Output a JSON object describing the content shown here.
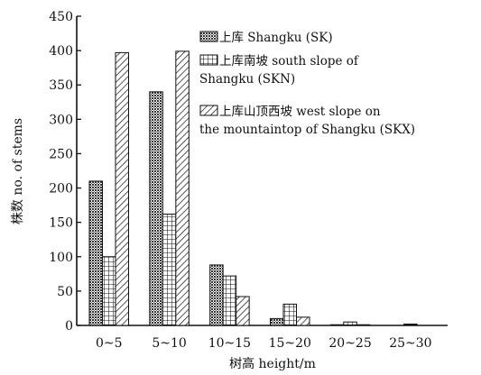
{
  "chart_data": {
    "type": "bar",
    "categories": [
      "0~5",
      "5~10",
      "10~15",
      "15~20",
      "20~25",
      "25~30"
    ],
    "series": [
      {
        "name": "上库 Shangku (SK)",
        "values": [
          210,
          340,
          88,
          10,
          1,
          0
        ]
      },
      {
        "name": "上库南坡 south slope of Shangku (SKN)",
        "values": [
          100,
          162,
          72,
          31,
          5,
          2
        ]
      },
      {
        "name": "上库山顶西坡 west slope on the mountaintop of Shangku (SKX)",
        "values": [
          397,
          399,
          42,
          12,
          1,
          0
        ]
      }
    ],
    "legend_lines": [
      [
        "上库  Shangku (SK)"
      ],
      [
        "上库南坡  south slope of",
        "Shangku (SKN)"
      ],
      [
        "上库山顶西坡 west slope on",
        "the mountaintop of Shangku (SKX)"
      ]
    ],
    "y_ticks": [
      "0",
      "50",
      "100",
      "150",
      "200",
      "250",
      "300",
      "350",
      "400",
      "450"
    ],
    "xlabel": "树高 height/m",
    "ylabel": "株数 no. of stems",
    "ylim": [
      0,
      450
    ],
    "legend_position": "top-right",
    "grid": false,
    "patterns": [
      "dense-shade",
      "grid",
      "diagonal-hatch"
    ],
    "color": "#111111"
  }
}
